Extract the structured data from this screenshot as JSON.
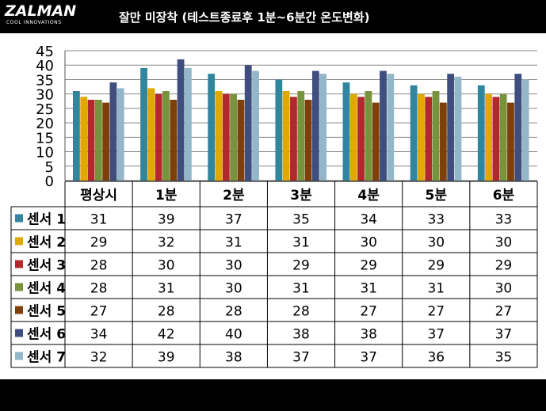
{
  "header": {
    "logo_main": "ZALMAN",
    "logo_sub": "COOL INNOVATIONS",
    "title": "잘만 미장착 (테스트종료후 1분~6분간 온도변화)"
  },
  "chart_data": {
    "type": "bar",
    "title": "잘만 미장착 (테스트종료후 1분~6분간 온도변화)",
    "categories": [
      "평상시",
      "1분",
      "2분",
      "3분",
      "4분",
      "5분",
      "6분"
    ],
    "ylim": [
      0,
      45
    ],
    "yticks": [
      "0",
      "5",
      "10",
      "15",
      "20",
      "25",
      "30",
      "35",
      "40",
      "45"
    ],
    "grid": true,
    "legend": "in-table-left",
    "series": [
      {
        "name": "센서 1",
        "color": "#31859c",
        "values": [
          31,
          39,
          37,
          35,
          34,
          33,
          33
        ]
      },
      {
        "name": "센서 2",
        "color": "#e0a800",
        "values": [
          29,
          32,
          31,
          31,
          30,
          30,
          30
        ]
      },
      {
        "name": "센서 3",
        "color": "#b3282d",
        "values": [
          28,
          30,
          30,
          29,
          29,
          29,
          29
        ]
      },
      {
        "name": "센서 4",
        "color": "#77933c",
        "values": [
          28,
          31,
          30,
          31,
          31,
          31,
          30
        ]
      },
      {
        "name": "센서 5",
        "color": "#7f3f0a",
        "values": [
          27,
          28,
          28,
          28,
          27,
          27,
          27
        ]
      },
      {
        "name": "센서 6",
        "color": "#3f4e7e",
        "values": [
          34,
          42,
          40,
          38,
          38,
          37,
          37
        ]
      },
      {
        "name": "센서 7",
        "color": "#93b6c8",
        "values": [
          32,
          39,
          38,
          37,
          37,
          36,
          35
        ]
      }
    ]
  }
}
